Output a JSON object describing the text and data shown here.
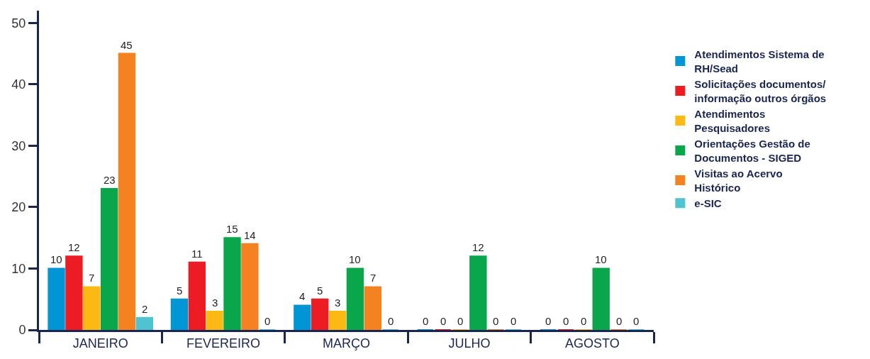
{
  "chart_data": {
    "type": "bar",
    "categories": [
      "JANEIRO",
      "FEVEREIRO",
      "MARÇO",
      "JULHO",
      "AGOSTO"
    ],
    "series": [
      {
        "name": "Atendimentos Sistema de RH/Sead",
        "color": "#0096d6",
        "values": [
          10,
          5,
          4,
          0,
          0
        ]
      },
      {
        "name": "Solicitações documentos/ informação outros órgãos",
        "color": "#ed1c24",
        "values": [
          12,
          11,
          5,
          0,
          0
        ]
      },
      {
        "name": "Atendimentos Pesquisadores",
        "color": "#fdb913",
        "values": [
          7,
          3,
          3,
          0,
          0
        ]
      },
      {
        "name": "Orientações Gestão de Documentos - SIGED",
        "color": "#0aa64b",
        "values": [
          23,
          15,
          10,
          12,
          10
        ]
      },
      {
        "name": "Visitas ao Acervo Histórico",
        "color": "#f58220",
        "values": [
          45,
          14,
          7,
          0,
          0
        ]
      },
      {
        "name": "e-SIC",
        "color": "#4fc3cf",
        "values": [
          2,
          0,
          0,
          0,
          0
        ]
      }
    ],
    "ylim": [
      0,
      52
    ],
    "yticks": [
      0,
      10,
      20,
      30,
      40,
      50
    ],
    "data_labels": true,
    "legend": "right",
    "grid": false
  }
}
